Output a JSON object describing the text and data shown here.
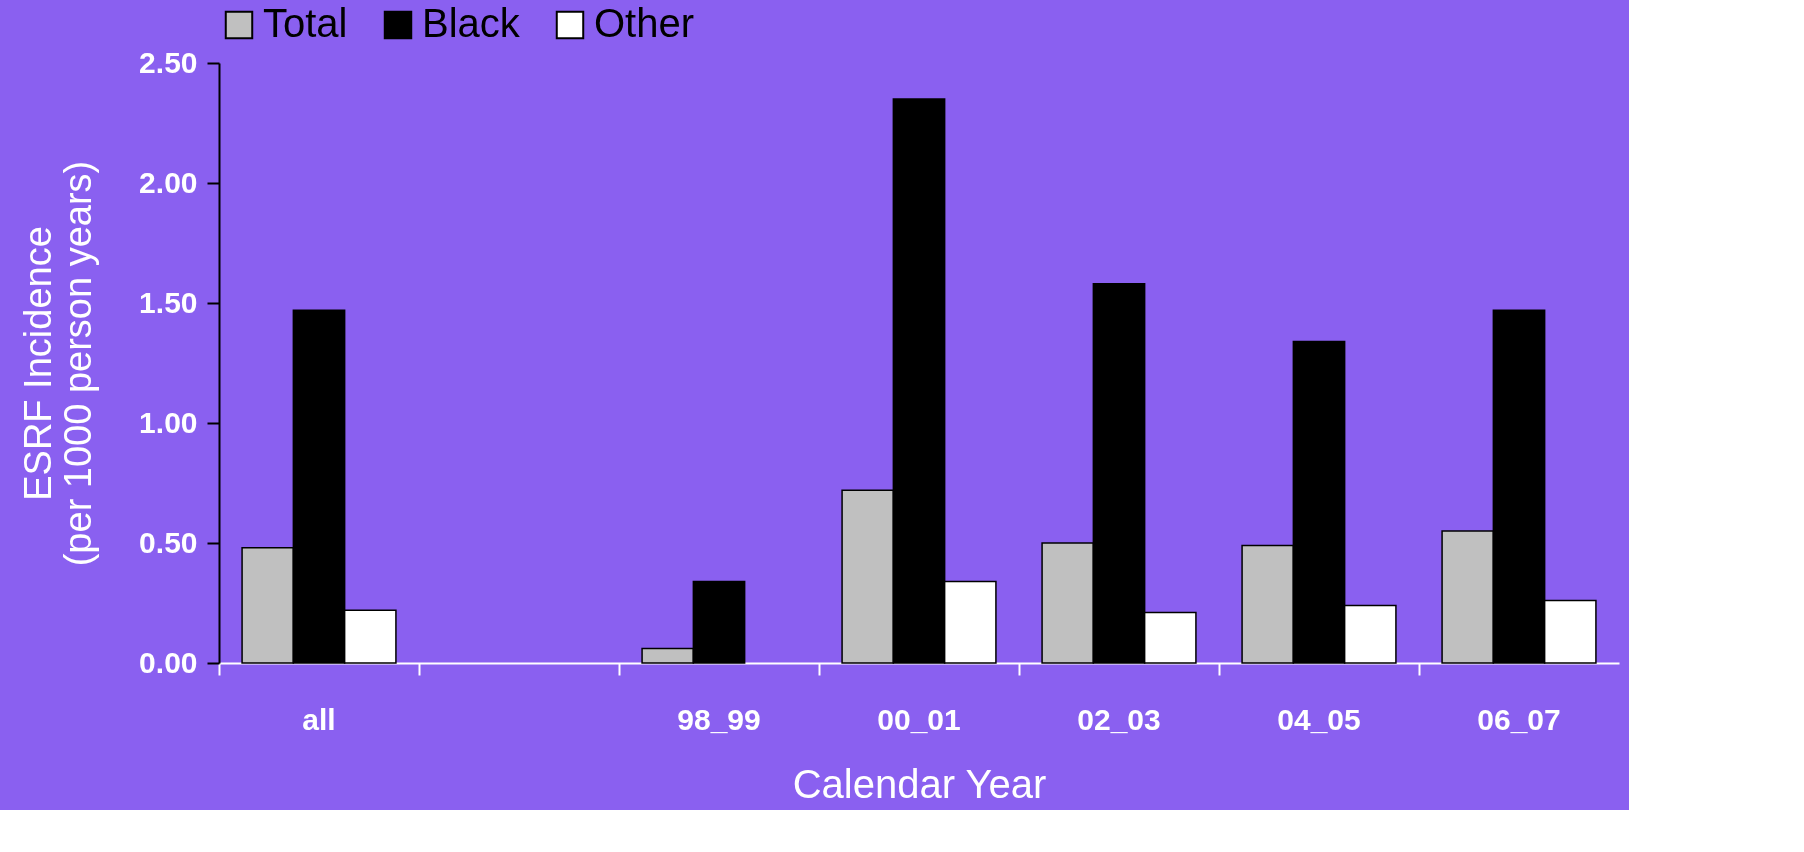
{
  "chart_data": {
    "type": "bar",
    "xlabel": "Calendar Year",
    "ylabel": "ESRF Incidence\n(per 1000 person years)",
    "categories": [
      "all",
      null,
      "98_99",
      "00_01",
      "02_03",
      "04_05",
      "06_07"
    ],
    "series": [
      {
        "name": "Total",
        "color": "#c0c0c0",
        "values": [
          0.48,
          null,
          0.06,
          0.72,
          0.5,
          0.49,
          0.55
        ]
      },
      {
        "name": "Black",
        "color": "#000000",
        "values": [
          1.47,
          null,
          0.34,
          2.35,
          1.58,
          1.34,
          1.47
        ]
      },
      {
        "name": "Other",
        "color": "#ffffff",
        "values": [
          0.22,
          null,
          null,
          0.34,
          0.21,
          0.24,
          0.26
        ]
      }
    ],
    "ylim": [
      0,
      2.5
    ],
    "yticks": [
      {
        "value": 0,
        "label": "0.00"
      },
      {
        "value": 0.5,
        "label": "0.50"
      },
      {
        "value": 1,
        "label": "1.00"
      },
      {
        "value": 1.5,
        "label": "1.50"
      },
      {
        "value": 2,
        "label": "2.00"
      },
      {
        "value": 2.5,
        "label": "2.50"
      }
    ],
    "legend": "top",
    "grid": false
  }
}
